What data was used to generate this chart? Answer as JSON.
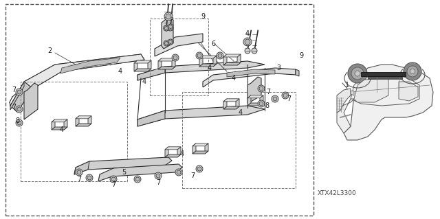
{
  "background_color": "#ffffff",
  "diagram_code": "XTX42L3300",
  "outer_box_dashed": true,
  "label_fontsize": 7,
  "text_color": "#1a1a1a",
  "part_line_color": "#2a2a2a",
  "part_fill_light": "#e0e0e0",
  "part_fill_mid": "#c8c8c8",
  "part_fill_dark": "#a8a8a8",
  "part_fill_white": "#f2f2f2"
}
